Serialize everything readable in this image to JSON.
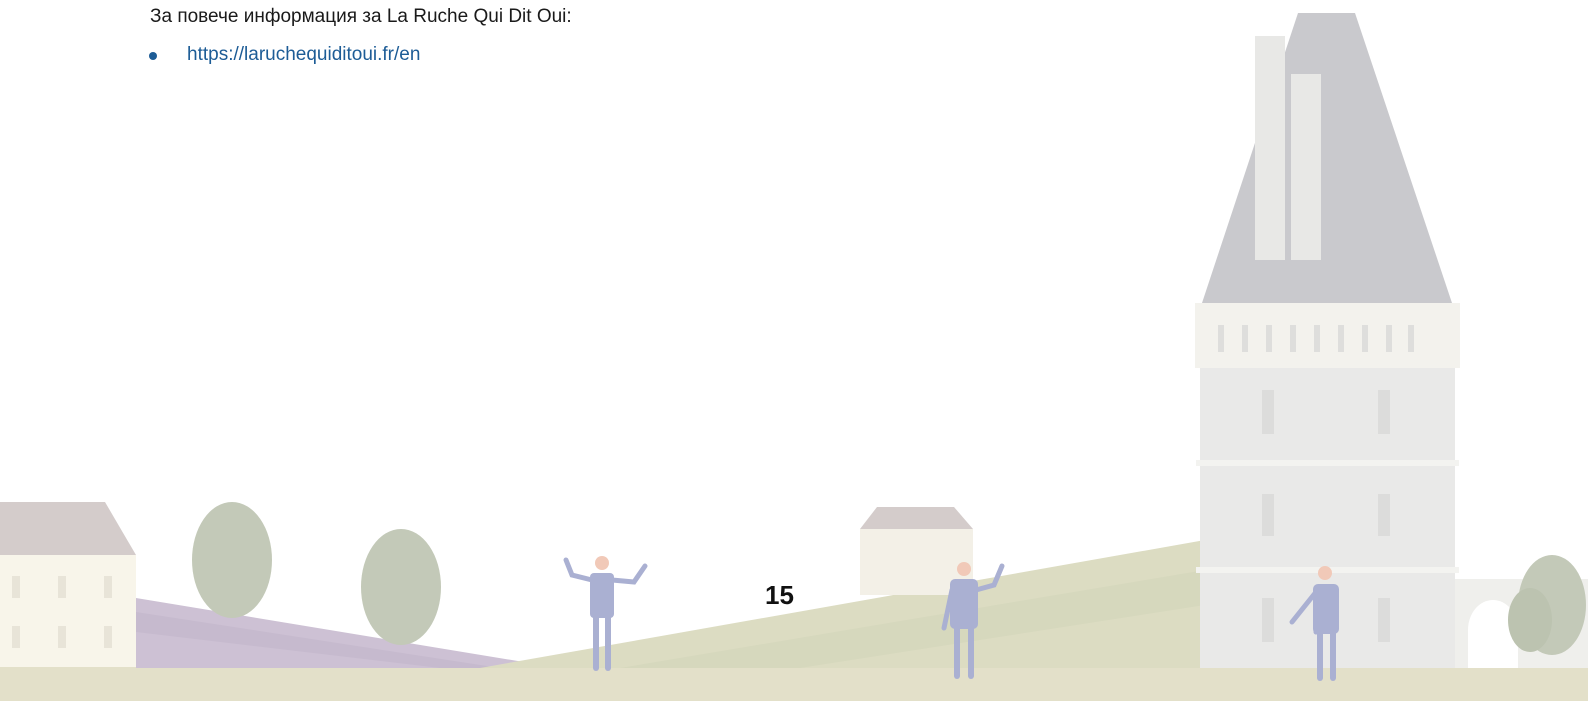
{
  "intro": "За повече информация за La Ruche Qui Dit Oui:",
  "links": [
    "https://laruchequiditoui.fr/en"
  ],
  "page_number": "15"
}
